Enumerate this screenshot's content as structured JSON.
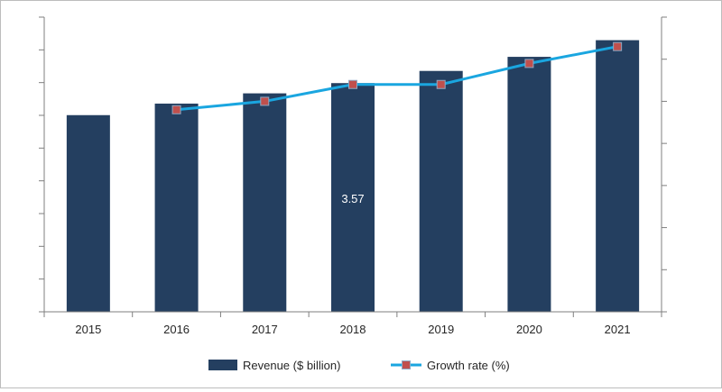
{
  "chart_data": {
    "type": "bar",
    "categories": [
      "2015",
      "2016",
      "2017",
      "2018",
      "2019",
      "2020",
      "2021"
    ],
    "series": [
      {
        "name": "Revenue ($ billion)",
        "type": "bar",
        "axis": "left",
        "color": "#243f60",
        "values": [
          3.07,
          3.25,
          3.41,
          3.57,
          3.76,
          3.98,
          4.24
        ]
      },
      {
        "name": "Growth rate (%)",
        "type": "line",
        "axis": "right",
        "color": "#1aa6e0",
        "marker_color": "#c0504d",
        "values": [
          null,
          4.8,
          5.0,
          5.4,
          5.4,
          5.9,
          6.3
        ]
      }
    ],
    "data_labels": [
      {
        "category": "2018",
        "series": "Revenue ($ billion)",
        "text": "3.57"
      }
    ],
    "ylim": [
      0,
      4.6
    ],
    "y2lim": [
      0,
      7.0
    ],
    "y_ticks_labeled": false,
    "y2_ticks_labeled": false,
    "grid": false,
    "legend": "bottom",
    "title": "",
    "xlabel": "",
    "ylabel": ""
  }
}
